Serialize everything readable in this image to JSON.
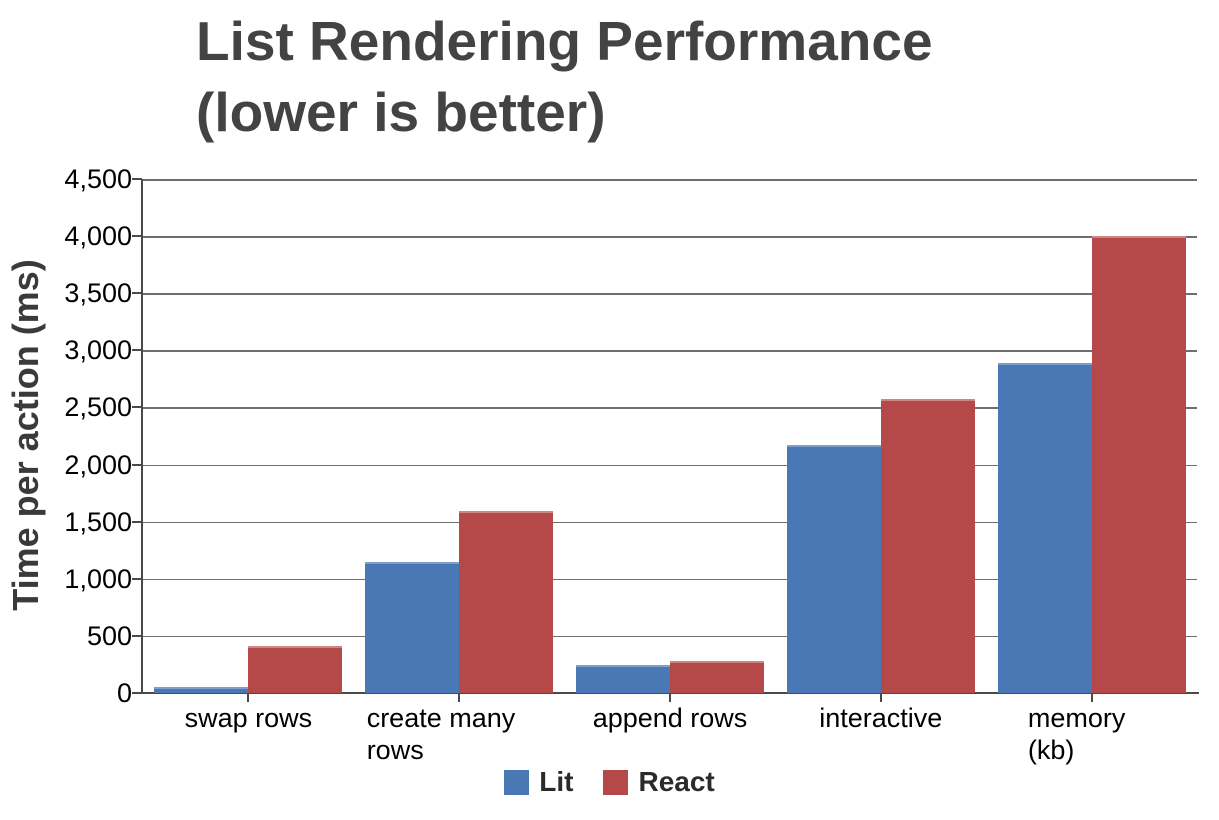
{
  "title": {
    "line1": "List Rendering Performance",
    "line2": "(lower is better)"
  },
  "y_axis": {
    "label": "Time per action (ms)",
    "tick_labels": [
      "4,500",
      "4,000",
      "3,500",
      "3,000",
      "2,500",
      "2,000",
      "1,500",
      "1,000",
      "500",
      "0"
    ],
    "max": 4500,
    "step": 500
  },
  "legend": {
    "items": [
      "Lit",
      "React"
    ],
    "position": "bottom"
  },
  "colors": {
    "lit": "#4A78B5",
    "lit_highlight": "#7E9FCC",
    "react": "#B5494A",
    "react_highlight": "#CE8685",
    "gridline": "#6E6E6E",
    "axis": "#4A4A4A",
    "title_text": "#434343"
  },
  "chart_data": {
    "type": "bar",
    "title": "List Rendering Performance (lower is better)",
    "xlabel": "",
    "ylabel": "Time per action (ms)",
    "ylim": [
      0,
      4500
    ],
    "grid": true,
    "legend_position": "bottom",
    "categories": [
      "swap rows",
      "create many rows",
      "append rows",
      "interactive",
      "memory (kb)"
    ],
    "series": [
      {
        "name": "Lit",
        "color": "#4A78B5",
        "highlight": "#7E9FCC",
        "values": [
          50,
          1150,
          245,
          2170,
          2890
        ]
      },
      {
        "name": "React",
        "color": "#B5494A",
        "highlight": "#CE8685",
        "values": [
          415,
          1590,
          280,
          2570,
          4000
        ]
      }
    ]
  }
}
